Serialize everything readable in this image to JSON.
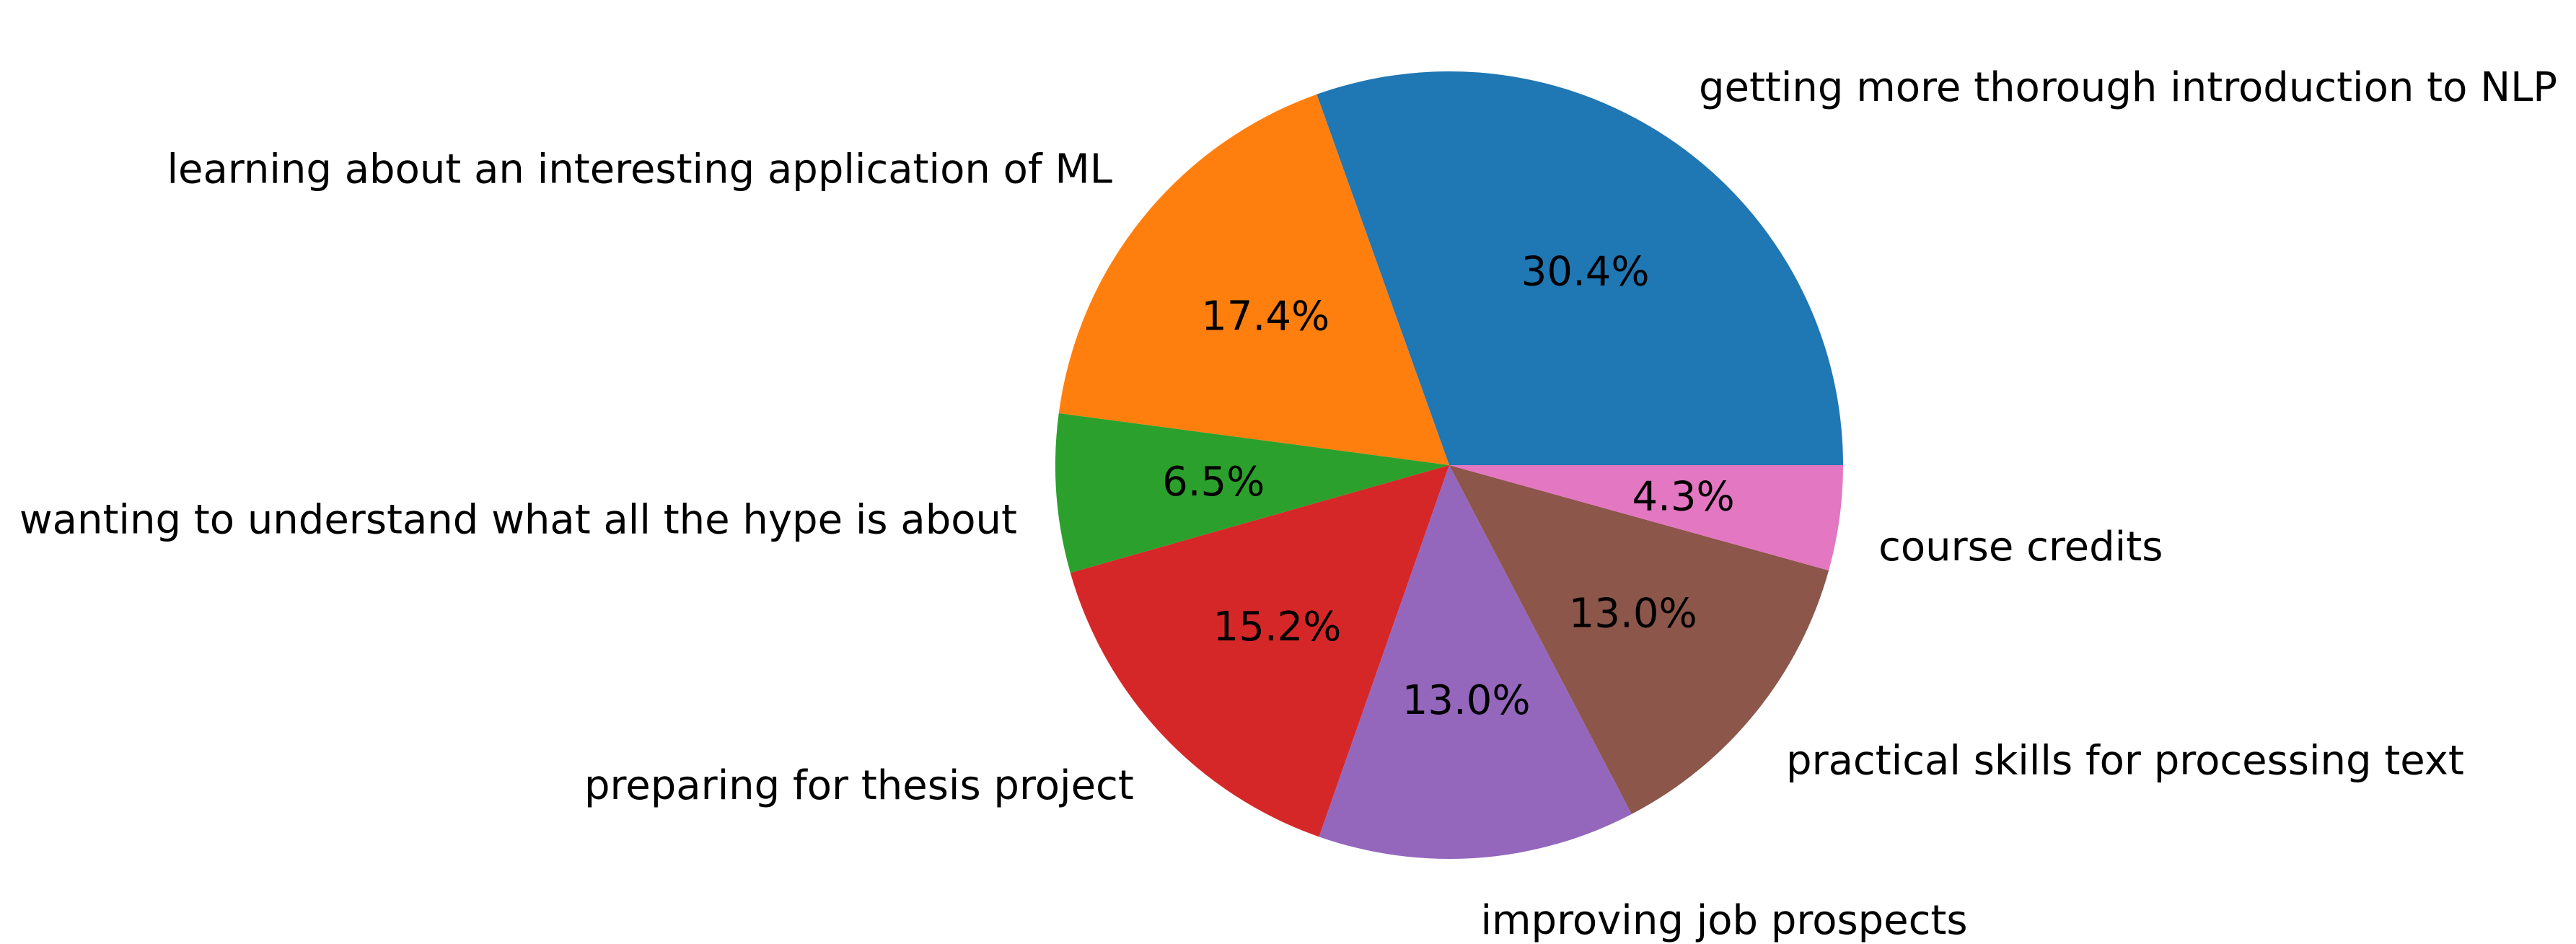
{
  "chart_data": {
    "type": "pie",
    "title": "",
    "start_angle_deg": 0,
    "direction": "counterclockwise",
    "slices": [
      {
        "label": "getting more thorough introduction to NLP",
        "value": 30.4,
        "pct_label": "30.4%",
        "color": "#1f77b4"
      },
      {
        "label": "learning about an interesting application of ML",
        "value": 17.4,
        "pct_label": "17.4%",
        "color": "#ff7f0e"
      },
      {
        "label": "wanting to understand what all the hype is about",
        "value": 6.5,
        "pct_label": "6.5%",
        "color": "#2ca02c"
      },
      {
        "label": "preparing for thesis project",
        "value": 15.2,
        "pct_label": "15.2%",
        "color": "#d62728"
      },
      {
        "label": "improving job prospects",
        "value": 13.0,
        "pct_label": "13.0%",
        "color": "#9467bd"
      },
      {
        "label": "practical skills for processing text",
        "value": 13.0,
        "pct_label": "13.0%",
        "color": "#8c564b"
      },
      {
        "label": "course credits",
        "value": 4.3,
        "pct_label": "4.3%",
        "color": "#e377c2"
      }
    ]
  }
}
